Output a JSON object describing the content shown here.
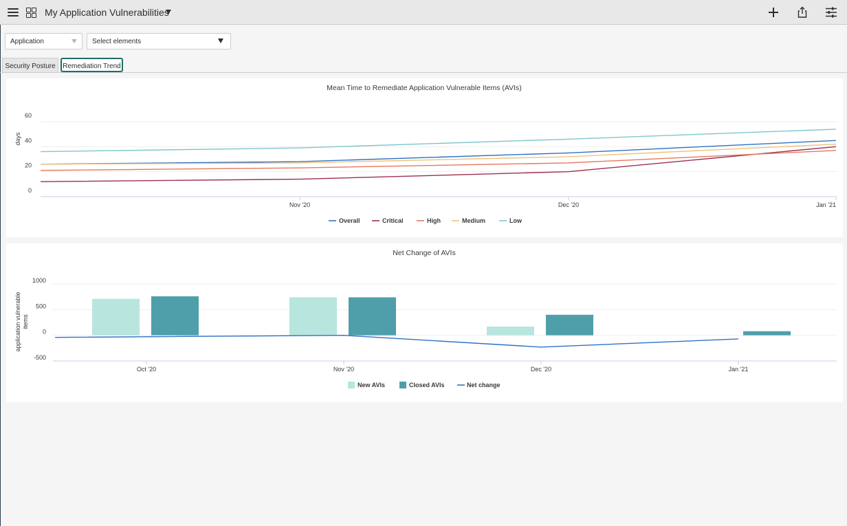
{
  "header": {
    "title": "My Application Vulnerabilities"
  },
  "filters": {
    "application": "Application",
    "elements": "Select elements"
  },
  "tabs": [
    {
      "label": "Security Posture",
      "active": false
    },
    {
      "label": "Remediation Trend",
      "active": true
    }
  ],
  "chart_data": [
    {
      "type": "line",
      "title": "Mean Time to Remediate Application Vulnerable Items (AVIs)",
      "ylabel": "days",
      "xlabel": "",
      "ylim": [
        0,
        60
      ],
      "yticks": [
        0,
        20,
        40,
        60
      ],
      "x": [
        0,
        1,
        2,
        3
      ],
      "xtick_labels": [
        "",
        "Nov '20",
        "Dec '20",
        "Jan '21"
      ],
      "grid": true,
      "legend_position": "bottom",
      "series": [
        {
          "name": "Overall",
          "color": "#2f72c4",
          "values": [
            26,
            28,
            35,
            45
          ]
        },
        {
          "name": "Critical",
          "color": "#9d2f4e",
          "values": [
            12,
            14,
            20,
            40
          ]
        },
        {
          "name": "High",
          "color": "#e6775a",
          "values": [
            21,
            23,
            27,
            37
          ]
        },
        {
          "name": "Medium",
          "color": "#f0c27a",
          "values": [
            26,
            27,
            32,
            42
          ]
        },
        {
          "name": "Low",
          "color": "#7dc7cc",
          "values": [
            36,
            39,
            46,
            54
          ]
        }
      ]
    },
    {
      "type": "bar",
      "title": "Net Change of AVIs",
      "ylabel": "application vulnerable items",
      "xlabel": "",
      "ylim": [
        -500,
        1000
      ],
      "yticks": [
        -500,
        0,
        500,
        1000
      ],
      "categories": [
        "Oct '20",
        "Nov '20",
        "Dec '20",
        "Jan '21"
      ],
      "grid": true,
      "legend_position": "bottom",
      "series": [
        {
          "name": "New AVIs",
          "kind": "bar",
          "color": "#b8e5de",
          "values": [
            710,
            740,
            170,
            0
          ]
        },
        {
          "name": "Closed AVIs",
          "kind": "bar",
          "color": "#4f9fab",
          "values": [
            760,
            740,
            400,
            80
          ]
        },
        {
          "name": "Net change",
          "kind": "line",
          "color": "#2f72c4",
          "values": [
            -40,
            0,
            -230,
            -70
          ]
        }
      ]
    }
  ]
}
